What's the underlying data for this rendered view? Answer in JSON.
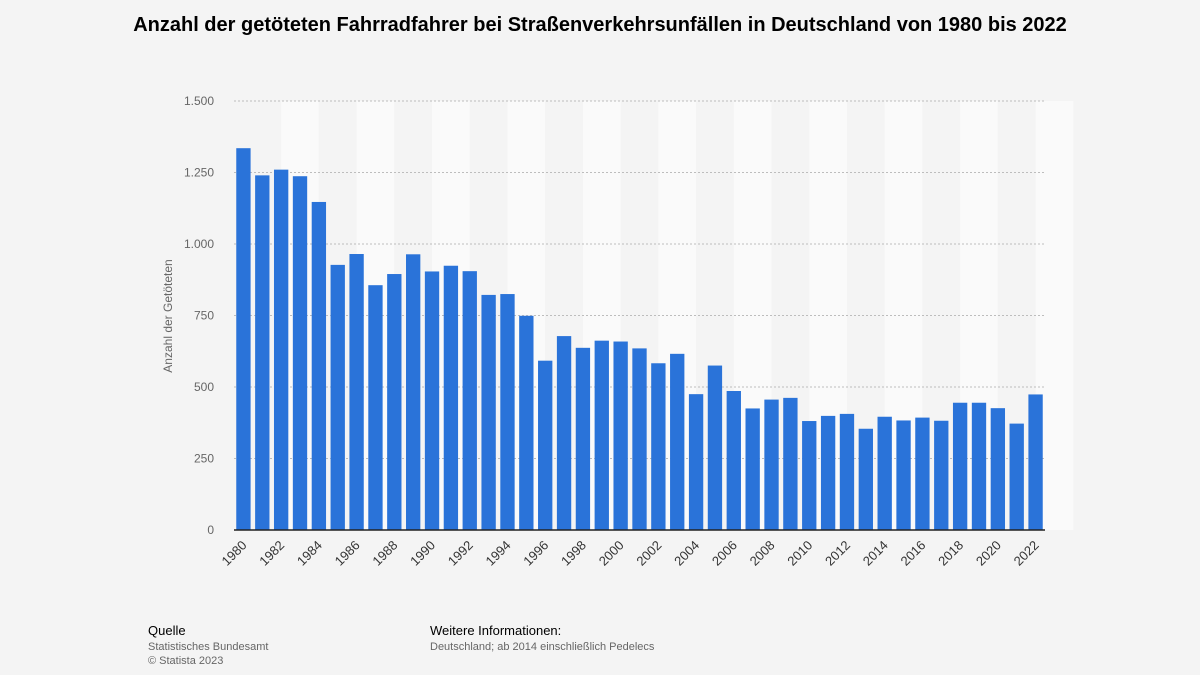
{
  "chart_data": {
    "type": "bar",
    "title": "Anzahl der getöteten Fahrradfahrer bei Straßenverkehrsunfällen in Deutschland von 1980 bis 2022",
    "ylabel": "Anzahl der Getöteten",
    "xlabel": "",
    "ylim": [
      0,
      1500
    ],
    "yticks": [
      0,
      250,
      500,
      750,
      1000,
      1250,
      1500
    ],
    "ytick_labels": [
      "0",
      "250",
      "500",
      "750",
      "1.000",
      "1.250",
      "1.500"
    ],
    "x": [
      1980,
      1981,
      1982,
      1983,
      1984,
      1985,
      1986,
      1987,
      1988,
      1989,
      1990,
      1991,
      1992,
      1993,
      1994,
      1995,
      1996,
      1997,
      1998,
      1999,
      2000,
      2001,
      2002,
      2003,
      2004,
      2005,
      2006,
      2007,
      2008,
      2009,
      2010,
      2011,
      2012,
      2013,
      2014,
      2015,
      2016,
      2017,
      2018,
      2019,
      2020,
      2021,
      2022
    ],
    "xtick_labels": [
      "1980",
      "1982",
      "1984",
      "1986",
      "1988",
      "1990",
      "1992",
      "1994",
      "1996",
      "1998",
      "2000",
      "2002",
      "2004",
      "2006",
      "2008",
      "2010",
      "2012",
      "2014",
      "2016",
      "2018",
      "2020",
      "2022"
    ],
    "values": [
      1335,
      1240,
      1260,
      1237,
      1147,
      927,
      965,
      856,
      895,
      964,
      904,
      924,
      905,
      822,
      825,
      749,
      592,
      678,
      637,
      662,
      659,
      635,
      583,
      616,
      475,
      575,
      486,
      425,
      456,
      462,
      381,
      399,
      406,
      354,
      396,
      383,
      393,
      382,
      445,
      445,
      426,
      372,
      474
    ],
    "bar_color": "#2a73d9",
    "grid": true
  },
  "footer": {
    "source_heading": "Quelle",
    "source_lines": [
      "Statistisches Bundesamt",
      "© Statista 2023"
    ],
    "info_heading": "Weitere Informationen:",
    "info_text": "Deutschland; ab 2014 einschließlich Pedelecs"
  }
}
